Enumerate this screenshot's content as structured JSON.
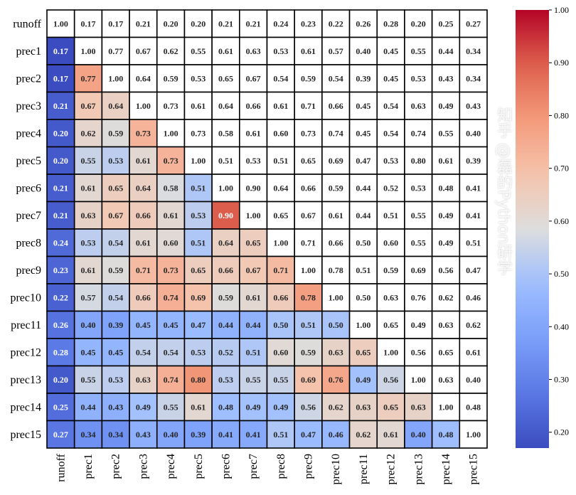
{
  "chart_data": {
    "type": "heatmap",
    "title": "",
    "xlabel": "",
    "ylabel": "",
    "colormap": "coolwarm",
    "vmin": 0.17,
    "vmax": 1.0,
    "upper_triangle_masked_white": true,
    "labels": [
      "runoff",
      "prec1",
      "prec2",
      "prec3",
      "prec4",
      "prec5",
      "prec6",
      "prec7",
      "prec8",
      "prec9",
      "prec10",
      "prec11",
      "prec12",
      "prec13",
      "prec14",
      "prec15"
    ],
    "matrix": [
      [
        1.0,
        0.17,
        0.17,
        0.21,
        0.2,
        0.2,
        0.21,
        0.21,
        0.24,
        0.23,
        0.22,
        0.26,
        0.28,
        0.2,
        0.25,
        0.27
      ],
      [
        0.17,
        1.0,
        0.77,
        0.67,
        0.62,
        0.55,
        0.61,
        0.63,
        0.53,
        0.61,
        0.57,
        0.4,
        0.45,
        0.55,
        0.44,
        0.34
      ],
      [
        0.17,
        0.77,
        1.0,
        0.64,
        0.59,
        0.53,
        0.65,
        0.67,
        0.54,
        0.59,
        0.54,
        0.39,
        0.45,
        0.53,
        0.43,
        0.34
      ],
      [
        0.21,
        0.67,
        0.64,
        1.0,
        0.73,
        0.61,
        0.64,
        0.66,
        0.61,
        0.71,
        0.66,
        0.45,
        0.54,
        0.63,
        0.49,
        0.43
      ],
      [
        0.2,
        0.62,
        0.59,
        0.73,
        1.0,
        0.73,
        0.58,
        0.61,
        0.6,
        0.73,
        0.74,
        0.45,
        0.54,
        0.74,
        0.55,
        0.4
      ],
      [
        0.2,
        0.55,
        0.53,
        0.61,
        0.73,
        1.0,
        0.51,
        0.53,
        0.51,
        0.65,
        0.69,
        0.47,
        0.53,
        0.8,
        0.61,
        0.39
      ],
      [
        0.21,
        0.61,
        0.65,
        0.64,
        0.58,
        0.51,
        1.0,
        0.9,
        0.64,
        0.66,
        0.59,
        0.44,
        0.52,
        0.53,
        0.48,
        0.41
      ],
      [
        0.21,
        0.63,
        0.67,
        0.66,
        0.61,
        0.53,
        0.9,
        1.0,
        0.65,
        0.67,
        0.61,
        0.44,
        0.51,
        0.55,
        0.49,
        0.41
      ],
      [
        0.24,
        0.53,
        0.54,
        0.61,
        0.6,
        0.51,
        0.64,
        0.65,
        1.0,
        0.71,
        0.66,
        0.5,
        0.6,
        0.55,
        0.49,
        0.51
      ],
      [
        0.23,
        0.61,
        0.59,
        0.71,
        0.73,
        0.65,
        0.66,
        0.67,
        0.71,
        1.0,
        0.78,
        0.51,
        0.59,
        0.69,
        0.56,
        0.47
      ],
      [
        0.22,
        0.57,
        0.54,
        0.66,
        0.74,
        0.69,
        0.59,
        0.61,
        0.66,
        0.78,
        1.0,
        0.5,
        0.63,
        0.76,
        0.62,
        0.46
      ],
      [
        0.26,
        0.4,
        0.39,
        0.45,
        0.45,
        0.47,
        0.44,
        0.44,
        0.5,
        0.51,
        0.5,
        1.0,
        0.65,
        0.49,
        0.63,
        0.62
      ],
      [
        0.28,
        0.45,
        0.45,
        0.54,
        0.54,
        0.53,
        0.52,
        0.51,
        0.6,
        0.59,
        0.63,
        0.65,
        1.0,
        0.56,
        0.65,
        0.61
      ],
      [
        0.2,
        0.55,
        0.53,
        0.63,
        0.74,
        0.8,
        0.53,
        0.55,
        0.55,
        0.69,
        0.76,
        0.49,
        0.56,
        1.0,
        0.63,
        0.4
      ],
      [
        0.25,
        0.44,
        0.43,
        0.49,
        0.55,
        0.61,
        0.48,
        0.49,
        0.49,
        0.56,
        0.62,
        0.63,
        0.65,
        0.63,
        1.0,
        0.48
      ],
      [
        0.27,
        0.34,
        0.34,
        0.43,
        0.4,
        0.39,
        0.41,
        0.41,
        0.51,
        0.47,
        0.46,
        0.62,
        0.61,
        0.4,
        0.48,
        1.0
      ]
    ],
    "colorbar_ticks": [
      "0.20",
      "0.30",
      "0.40",
      "0.50",
      "0.60",
      "0.70",
      "0.80",
      "0.90",
      "1.00"
    ]
  },
  "watermark": "知乎 @磊的Python研学"
}
